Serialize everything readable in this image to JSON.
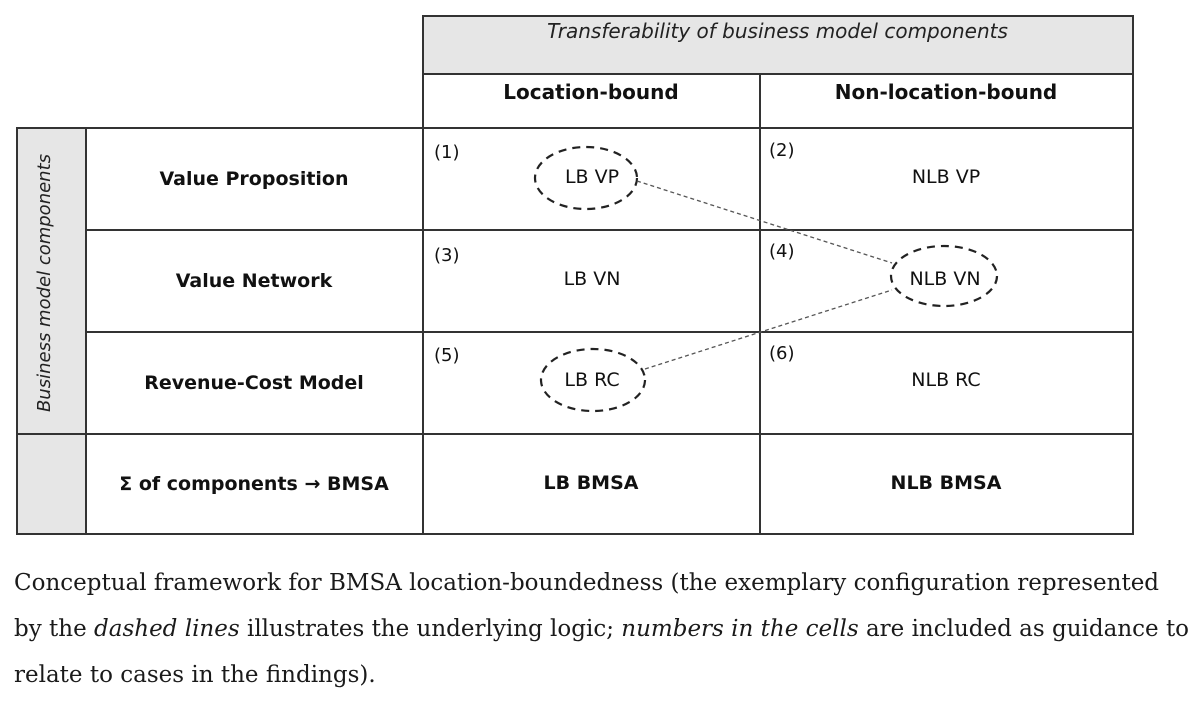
{
  "header": {
    "title": "Transferability of business model components"
  },
  "columns": {
    "location_bound": "Location-bound",
    "non_location_bound": "Non-location-bound"
  },
  "side_label": "Business model components",
  "rows": [
    {
      "label": "Value Proposition",
      "num_lb": "(1)",
      "lb": "LB VP",
      "num_nlb": "(2)",
      "nlb": "NLB VP"
    },
    {
      "label": "Value Network",
      "num_lb": "(3)",
      "lb": "LB VN",
      "num_nlb": "(4)",
      "nlb": "NLB VN"
    },
    {
      "label": "Revenue-Cost Model",
      "num_lb": "(5)",
      "lb": "LB RC",
      "num_nlb": "(6)",
      "nlb": "NLB RC"
    }
  ],
  "sum_row": {
    "label": "Σ of components → BMSA",
    "lb": "LB  BMSA",
    "nlb": "NLB BMSA"
  },
  "caption": {
    "part1": "Conceptual framework for BMSA location-boundedness (the exemplary configuration represented by the ",
    "em1": "dashed lines",
    "part2": " illustrates the underlying logic; ",
    "em2": "numbers in the cells",
    "part3": " are included as guidance to relate to cases in the findings)."
  }
}
